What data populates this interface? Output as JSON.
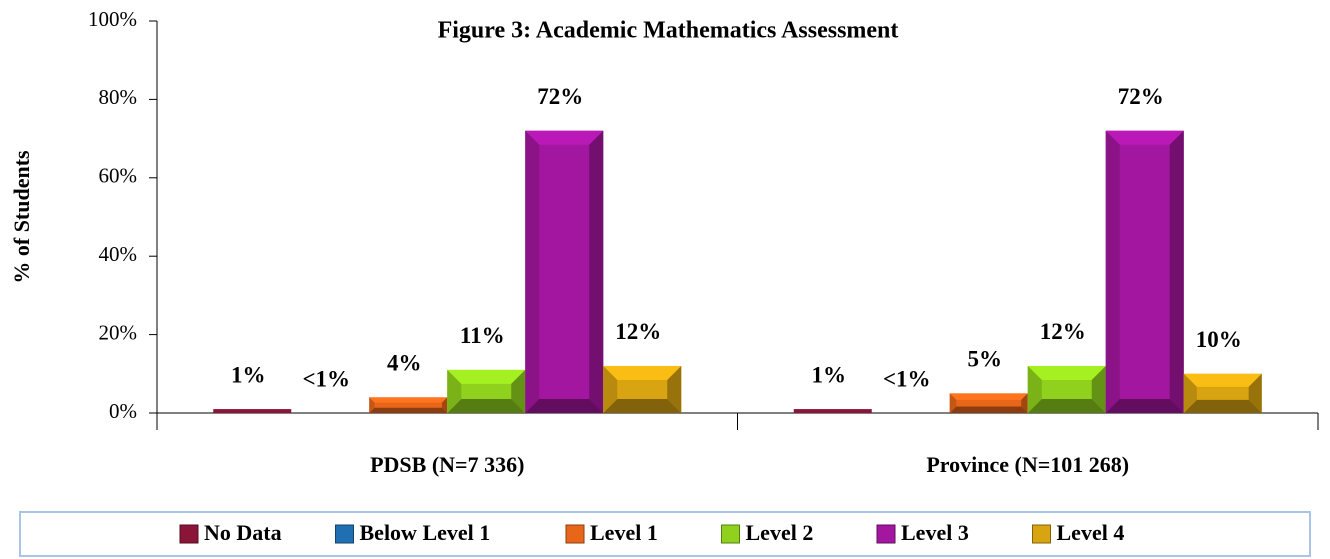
{
  "chart_data": {
    "type": "bar",
    "title": "Figure 3:  Academic Mathematics Assessment",
    "y_label": "%  of Students",
    "categories": [
      "PDSB (N=7 336)",
      "Province (N=101 268)"
    ],
    "series": [
      {
        "name": "No Data",
        "color": "#8b1538",
        "values": [
          1,
          1
        ],
        "value_labels": [
          "1%",
          "1%"
        ]
      },
      {
        "name": "Below Level 1",
        "color": "#1f6fb2",
        "values": [
          0,
          0
        ],
        "value_labels": [
          "<1%",
          "<1%"
        ]
      },
      {
        "name": "Level 1",
        "color": "#e8661a",
        "values": [
          4,
          5
        ],
        "value_labels": [
          "4%",
          "5%"
        ]
      },
      {
        "name": "Level 2",
        "color": "#8fd11c",
        "values": [
          11,
          12
        ],
        "value_labels": [
          "11%",
          "12%"
        ]
      },
      {
        "name": "Level 3",
        "color": "#a3169f",
        "values": [
          72,
          72
        ],
        "value_labels": [
          "72%",
          "72%"
        ]
      },
      {
        "name": "Level 4",
        "color": "#d9a411",
        "values": [
          12,
          10
        ],
        "value_labels": [
          "12%",
          "10%"
        ]
      }
    ],
    "ylim": [
      0,
      100
    ],
    "yticks": [
      {
        "value": 0,
        "label": "0%"
      },
      {
        "value": 20,
        "label": "20%"
      },
      {
        "value": 40,
        "label": "40%"
      },
      {
        "value": 60,
        "label": "60%"
      },
      {
        "value": 80,
        "label": "80%"
      },
      {
        "value": 100,
        "label": "100%"
      }
    ],
    "legend": "bottom"
  }
}
